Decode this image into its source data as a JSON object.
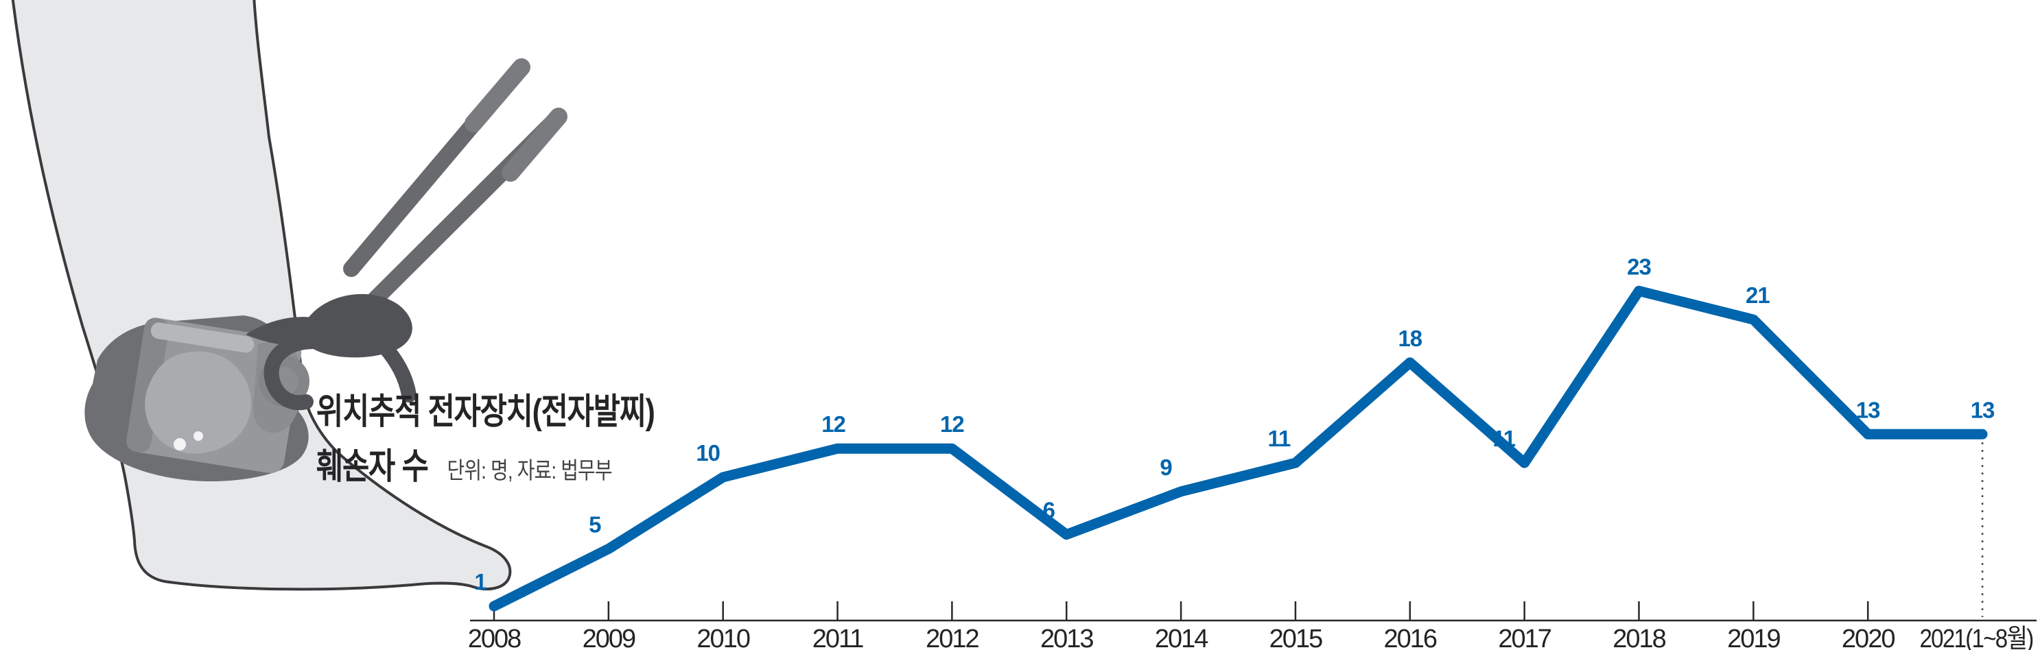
{
  "page": {
    "background": "#ffffff"
  },
  "title": {
    "line1": "위치추적 전자장치(전자발찌)",
    "line2": "훼손자 수",
    "unit_source": "단위: 명, 자료: 법무부"
  },
  "chart_data": {
    "type": "line",
    "title": "위치추적 전자장치(전자발찌) 훼손자 수",
    "unit_label": "단위: 명",
    "source_label": "자료: 법무부",
    "categories": [
      "2008",
      "2009",
      "2010",
      "2011",
      "2012",
      "2013",
      "2014",
      "2015",
      "2016",
      "2017",
      "2018",
      "2019",
      "2020",
      "2021(1~8월)"
    ],
    "values": [
      1,
      5,
      10,
      12,
      12,
      6,
      9,
      11,
      18,
      11,
      23,
      21,
      13,
      13
    ],
    "ylim": [
      0,
      25
    ],
    "xlabel": "",
    "ylabel": "",
    "grid": false,
    "legend": false,
    "line_color": "#0065ad",
    "value_label_color": "#0065ad",
    "axis_color": "#28282a",
    "year_label_color": "#232325",
    "dotted_drop_color": "#4a4a4c",
    "last_point_style": "dotted-drop-line"
  },
  "illustration": {
    "name": "ankle-monitor-being-cut-illustration",
    "leg_fill": "#e7e8ea",
    "outline_color": "#3a3a3c",
    "strap_gray": "#6e6f72",
    "device_gray": "#96989b",
    "device_light_gray": "#a9abae",
    "cutter_dark_gray": "#515255",
    "cutter_handle_gray": "#696a6d"
  }
}
